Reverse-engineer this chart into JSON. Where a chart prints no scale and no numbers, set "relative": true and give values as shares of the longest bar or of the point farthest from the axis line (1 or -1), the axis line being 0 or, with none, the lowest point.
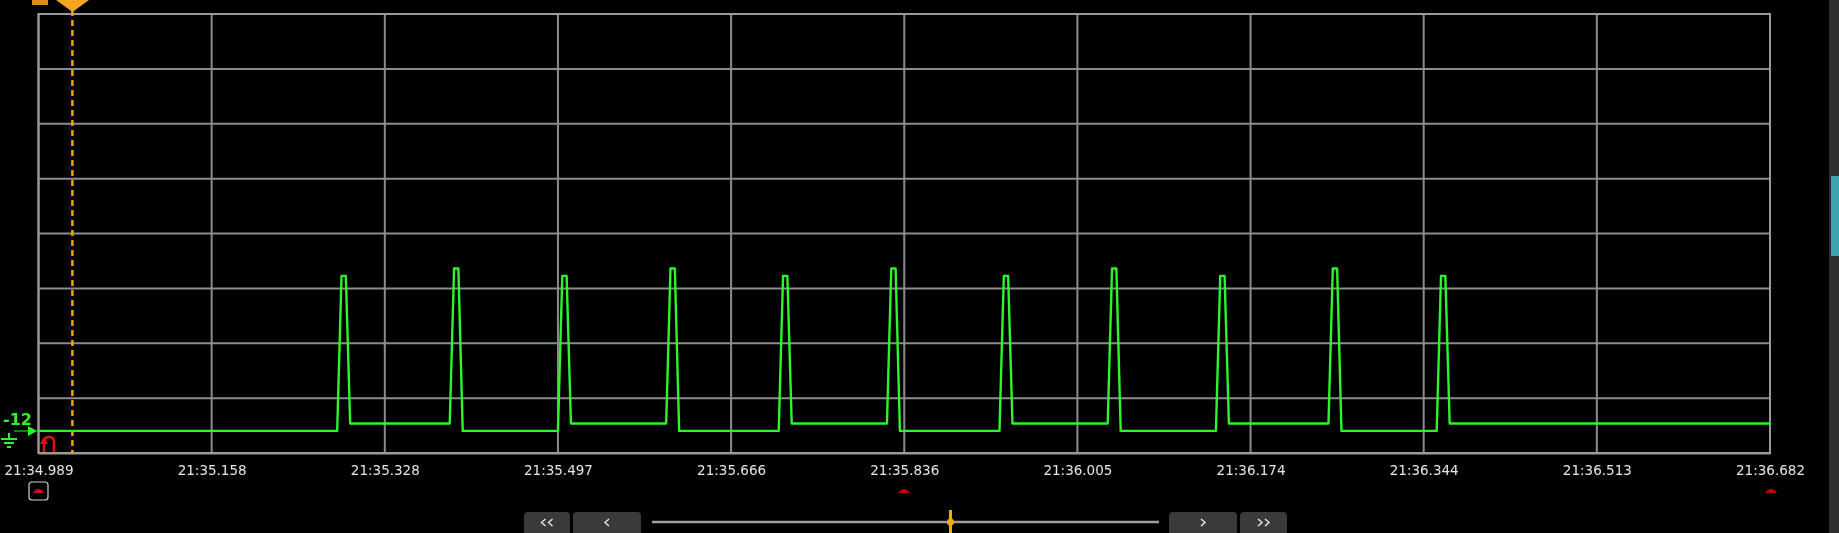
{
  "chart_data": {
    "type": "line",
    "relative": true,
    "grid": true,
    "categories": [
      "21:34.989",
      null,
      null,
      null,
      null,
      null,
      null,
      null,
      null,
      null,
      null,
      null,
      null,
      null,
      null,
      null,
      null,
      null,
      null,
      null,
      null,
      null,
      null,
      null,
      null,
      null,
      null,
      null,
      null,
      null,
      null,
      null,
      null,
      null,
      null,
      null,
      null,
      null,
      null,
      null,
      "21:35.158",
      null,
      null,
      null,
      null,
      null,
      null,
      null,
      null,
      null,
      null,
      null,
      null,
      null,
      null,
      null,
      null,
      null,
      null,
      null,
      null,
      null,
      null,
      null,
      null,
      null,
      null,
      null,
      null,
      null,
      null,
      null,
      null,
      null,
      null,
      null,
      null,
      null,
      null,
      null,
      "21:35.328",
      null,
      null,
      null,
      null,
      null,
      null,
      null,
      null,
      null,
      null,
      null,
      null,
      null,
      null,
      null,
      null,
      null,
      null,
      null,
      null,
      null,
      null,
      null,
      null,
      null,
      null,
      null,
      null,
      null,
      null,
      null,
      null,
      null,
      null,
      null,
      null,
      null,
      null,
      null,
      "21:35.497",
      null,
      null,
      null,
      null,
      null,
      null,
      null,
      null,
      null,
      null,
      null,
      null,
      null,
      null,
      null,
      null,
      null,
      null,
      null,
      null,
      null,
      null,
      null,
      null,
      null,
      null,
      null,
      null,
      null,
      null,
      null,
      null,
      null,
      null,
      null,
      null,
      null,
      null,
      null,
      "21:35.666",
      null,
      null,
      null,
      null,
      null,
      null,
      null,
      null,
      null,
      null,
      null,
      null,
      null,
      null,
      null,
      null,
      null,
      null,
      null,
      null,
      null,
      null,
      null,
      null,
      null,
      null,
      null,
      null,
      null,
      null,
      null,
      null,
      null,
      null,
      null,
      null,
      null,
      null,
      null,
      "21:35.836",
      null,
      null,
      null,
      null,
      null,
      null,
      null,
      null,
      null,
      null,
      null,
      null,
      null,
      null,
      null,
      null,
      null,
      null,
      null,
      null,
      null,
      null,
      null,
      null,
      null,
      null,
      null,
      null,
      null,
      null,
      null,
      null,
      null,
      null,
      null,
      null,
      null,
      null,
      null,
      "21:36.005",
      null,
      null,
      null,
      null,
      null,
      null,
      null,
      null,
      null,
      null,
      null,
      null,
      null,
      null,
      null,
      null,
      null,
      null,
      null,
      null,
      null,
      null,
      null,
      null,
      null,
      null,
      null,
      null,
      null,
      null,
      null,
      null,
      null,
      null,
      null,
      null,
      null,
      null,
      null,
      "21:36.174",
      null,
      null,
      null,
      null,
      null,
      null,
      null,
      null,
      null,
      null,
      null,
      null,
      null,
      null,
      null,
      null,
      null,
      null,
      null,
      null,
      null,
      null,
      null,
      null,
      null,
      null,
      null,
      null,
      null,
      null,
      null,
      null,
      null,
      null,
      null,
      null,
      null,
      null,
      null,
      "21:36.344",
      null,
      null,
      null,
      null,
      null,
      null,
      null,
      null,
      null,
      null,
      null,
      null,
      null,
      null,
      null,
      null,
      null,
      null,
      null,
      null,
      null,
      null,
      null,
      null,
      null,
      null,
      null,
      null,
      null,
      null,
      null,
      null,
      null,
      null,
      null,
      null,
      null,
      null,
      null,
      "21:36.513",
      null,
      null,
      null,
      null,
      null,
      null,
      null,
      null,
      null,
      null,
      null,
      null,
      null,
      null,
      null,
      null,
      null,
      null,
      null,
      null,
      null,
      null,
      null,
      null,
      null,
      null,
      null,
      null,
      null,
      null,
      null,
      null,
      null,
      null,
      null,
      null,
      null,
      null,
      null,
      "21:36.682"
    ],
    "series": [
      {
        "color": "#2cf52c",
        "values": [
          0.12,
          0.12,
          0.12,
          0.12,
          0.12,
          0.12,
          0.12,
          0.12,
          0.12,
          0.12,
          0.12,
          0.12,
          0.12,
          0.12,
          0.12,
          0.12,
          0.12,
          0.12,
          0.12,
          0.12,
          0.12,
          0.12,
          0.12,
          0.12,
          0.12,
          0.12,
          0.12,
          0.12,
          0.12,
          0.12,
          0.12,
          0.12,
          0.12,
          0.12,
          0.12,
          0.12,
          0.12,
          0.12,
          0.12,
          0.12,
          0.12,
          0.12,
          0.12,
          0.12,
          0.12,
          0.12,
          0.12,
          0.12,
          0.12,
          0.12,
          0.12,
          0.12,
          0.12,
          0.12,
          0.12,
          0.12,
          0.12,
          0.12,
          0.12,
          0.12,
          0.12,
          0.12,
          0.12,
          0.12,
          0.12,
          0.12,
          0.12,
          0.12,
          0.12,
          0.12,
          0.96,
          0.96,
          0.16,
          0.16,
          0.16,
          0.16,
          0.16,
          0.16,
          0.16,
          0.16,
          0.16,
          0.16,
          0.16,
          0.16,
          0.16,
          0.16,
          0.16,
          0.16,
          0.16,
          0.16,
          0.16,
          0.16,
          0.16,
          0.16,
          0.16,
          0.16,
          1,
          1,
          0.12,
          0.12,
          0.12,
          0.12,
          0.12,
          0.12,
          0.12,
          0.12,
          0.12,
          0.12,
          0.12,
          0.12,
          0.12,
          0.12,
          0.12,
          0.12,
          0.12,
          0.12,
          0.12,
          0.12,
          0.12,
          0.12,
          0.12,
          0.96,
          0.96,
          0.16,
          0.16,
          0.16,
          0.16,
          0.16,
          0.16,
          0.16,
          0.16,
          0.16,
          0.16,
          0.16,
          0.16,
          0.16,
          0.16,
          0.16,
          0.16,
          0.16,
          0.16,
          0.16,
          0.16,
          0.16,
          0.16,
          0.16,
          1,
          1,
          0.12,
          0.12,
          0.12,
          0.12,
          0.12,
          0.12,
          0.12,
          0.12,
          0.12,
          0.12,
          0.12,
          0.12,
          0.12,
          0.12,
          0.12,
          0.12,
          0.12,
          0.12,
          0.12,
          0.12,
          0.12,
          0.12,
          0.12,
          0.12,
          0.96,
          0.96,
          0.16,
          0.16,
          0.16,
          0.16,
          0.16,
          0.16,
          0.16,
          0.16,
          0.16,
          0.16,
          0.16,
          0.16,
          0.16,
          0.16,
          0.16,
          0.16,
          0.16,
          0.16,
          0.16,
          0.16,
          0.16,
          0.16,
          0.16,
          1,
          1,
          0.12,
          0.12,
          0.12,
          0.12,
          0.12,
          0.12,
          0.12,
          0.12,
          0.12,
          0.12,
          0.12,
          0.12,
          0.12,
          0.12,
          0.12,
          0.12,
          0.12,
          0.12,
          0.12,
          0.12,
          0.12,
          0.12,
          0.12,
          0.12,
          0.96,
          0.96,
          0.16,
          0.16,
          0.16,
          0.16,
          0.16,
          0.16,
          0.16,
          0.16,
          0.16,
          0.16,
          0.16,
          0.16,
          0.16,
          0.16,
          0.16,
          0.16,
          0.16,
          0.16,
          0.16,
          0.16,
          0.16,
          0.16,
          0.16,
          1,
          1,
          0.12,
          0.12,
          0.12,
          0.12,
          0.12,
          0.12,
          0.12,
          0.12,
          0.12,
          0.12,
          0.12,
          0.12,
          0.12,
          0.12,
          0.12,
          0.12,
          0.12,
          0.12,
          0.12,
          0.12,
          0.12,
          0.12,
          0.12,
          0.96,
          0.96,
          0.16,
          0.16,
          0.16,
          0.16,
          0.16,
          0.16,
          0.16,
          0.16,
          0.16,
          0.16,
          0.16,
          0.16,
          0.16,
          0.16,
          0.16,
          0.16,
          0.16,
          0.16,
          0.16,
          0.16,
          0.16,
          0.16,
          0.16,
          0.16,
          1,
          1,
          0.12,
          0.12,
          0.12,
          0.12,
          0.12,
          0.12,
          0.12,
          0.12,
          0.12,
          0.12,
          0.12,
          0.12,
          0.12,
          0.12,
          0.12,
          0.12,
          0.12,
          0.12,
          0.12,
          0.12,
          0.12,
          0.12,
          0.12,
          0.96,
          0.96,
          0.16,
          0.16,
          0.16,
          0.16,
          0.16,
          0.16,
          0.16,
          0.16,
          0.16,
          0.16,
          0.16,
          0.16,
          0.16,
          0.16,
          0.16,
          0.16,
          0.16,
          0.16,
          0.16,
          0.16,
          0.16,
          0.16,
          0.16,
          0.16,
          0.16,
          0.16,
          0.16,
          0.16,
          0.16,
          0.16,
          0.16,
          0.16,
          0.16,
          0.16,
          0.16,
          0.16,
          0.16,
          0.16,
          0.16,
          0.16,
          0.16,
          0.16,
          0.16,
          0.16,
          0.16,
          0.16,
          0.16,
          0.16,
          0.16,
          0.16,
          0.16,
          0.16,
          0.16,
          0.16,
          0.16,
          0.16,
          0.16,
          0.16,
          0.16,
          0.16,
          0.16,
          0.16,
          0.16,
          0.16,
          0.16,
          0.16,
          0.16,
          0.16,
          0.16,
          0.16,
          0.16,
          0.16,
          0.16,
          0.16,
          0.16
        ]
      }
    ],
    "annotations": [
      "-12"
    ]
  }
}
